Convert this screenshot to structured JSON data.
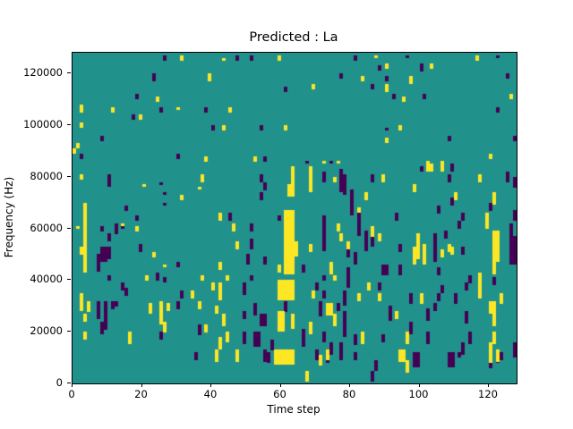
{
  "chart_data": {
    "type": "heatmap",
    "title": "Predicted : La",
    "xlabel": "Time step",
    "ylabel": "Frequency (Hz)",
    "xlim": [
      0,
      128
    ],
    "ylim": [
      0,
      128000
    ],
    "x_ticks": [
      0,
      20,
      40,
      60,
      80,
      100,
      120
    ],
    "y_ticks": [
      0,
      20000,
      40000,
      60000,
      80000,
      100000,
      120000
    ],
    "grid_cols": 128,
    "grid_rows": 128,
    "colormap": "viridis",
    "colors": {
      "mid_background": "#21918c",
      "high": "#fde725",
      "low": "#440154",
      "axis": "#000000"
    },
    "grid": false,
    "legend": null,
    "cells_high": [
      [
        31,
        125,
        2
      ],
      [
        24,
        109,
        2
      ],
      [
        2,
        105,
        3
      ],
      [
        11,
        105,
        2
      ],
      [
        30,
        106,
        1
      ],
      [
        19,
        102,
        2
      ],
      [
        2,
        99,
        2
      ],
      [
        1,
        91,
        2
      ],
      [
        0,
        89,
        2
      ],
      [
        43,
        125,
        1
      ],
      [
        59,
        125,
        2
      ],
      [
        39,
        117,
        3
      ],
      [
        45,
        105,
        2
      ],
      [
        43,
        98,
        2
      ],
      [
        61,
        98,
        2
      ],
      [
        38,
        86,
        2
      ],
      [
        52,
        86,
        2
      ],
      [
        87,
        126,
        1
      ],
      [
        90,
        122,
        2
      ],
      [
        83,
        117,
        2
      ],
      [
        69,
        114,
        2
      ],
      [
        90,
        113,
        3
      ],
      [
        95,
        109,
        2
      ],
      [
        94,
        98,
        2
      ],
      [
        90,
        93,
        2
      ],
      [
        72,
        85,
        1
      ],
      [
        76,
        85,
        1
      ],
      [
        116,
        125,
        2
      ],
      [
        103,
        122,
        2
      ],
      [
        97,
        116,
        3
      ],
      [
        126,
        110,
        2
      ],
      [
        120,
        87,
        2
      ],
      [
        102,
        85,
        1
      ],
      [
        106,
        85,
        1
      ],
      [
        2,
        79,
        2
      ],
      [
        20,
        76,
        1
      ],
      [
        31,
        71,
        2
      ],
      [
        3,
        43,
        27
      ],
      [
        2,
        50,
        3
      ],
      [
        14,
        61,
        1
      ],
      [
        1,
        60,
        1
      ],
      [
        18,
        59,
        2
      ],
      [
        23,
        49,
        2
      ],
      [
        26,
        45,
        1
      ],
      [
        37,
        78,
        3
      ],
      [
        36,
        75,
        1
      ],
      [
        42,
        63,
        3
      ],
      [
        46,
        59,
        3
      ],
      [
        47,
        52,
        3
      ],
      [
        42,
        44,
        3
      ],
      [
        61,
        56,
        11,
        3
      ],
      [
        62,
        72,
        5,
        2
      ],
      [
        63,
        77,
        7
      ],
      [
        64,
        49,
        6
      ],
      [
        61,
        42,
        14,
        3
      ],
      [
        59,
        43,
        3
      ],
      [
        68,
        74,
        10
      ],
      [
        75,
        78,
        2
      ],
      [
        84,
        71,
        3
      ],
      [
        89,
        78,
        3
      ],
      [
        82,
        66,
        2
      ],
      [
        76,
        59,
        3
      ],
      [
        86,
        57,
        4
      ],
      [
        88,
        55,
        3
      ],
      [
        77,
        55,
        3
      ],
      [
        79,
        52,
        3
      ],
      [
        68,
        51,
        3
      ],
      [
        74,
        42,
        5
      ],
      [
        102,
        82,
        3,
        2
      ],
      [
        106,
        82,
        3
      ],
      [
        117,
        78,
        3
      ],
      [
        98,
        74,
        3
      ],
      [
        110,
        71,
        3
      ],
      [
        121,
        69,
        5
      ],
      [
        119,
        63,
        3
      ],
      [
        119,
        60,
        3
      ],
      [
        99,
        48,
        10
      ],
      [
        98,
        46,
        7
      ],
      [
        101,
        46,
        8
      ],
      [
        106,
        49,
        3
      ],
      [
        108,
        51,
        3
      ],
      [
        109,
        50,
        3
      ],
      [
        121,
        47,
        12,
        2
      ],
      [
        121,
        42,
        6
      ],
      [
        21,
        40,
        2
      ],
      [
        2,
        28,
        7
      ],
      [
        4,
        28,
        4
      ],
      [
        22,
        27,
        4
      ],
      [
        25,
        23,
        9
      ],
      [
        27,
        28,
        3
      ],
      [
        3,
        24,
        3
      ],
      [
        3,
        17,
        3
      ],
      [
        16,
        15,
        5
      ],
      [
        26,
        20,
        4
      ],
      [
        37,
        40,
        2
      ],
      [
        44,
        40,
        2
      ],
      [
        40,
        36,
        3
      ],
      [
        42,
        32,
        7
      ],
      [
        34,
        33,
        3
      ],
      [
        36,
        29,
        3
      ],
      [
        41,
        27,
        3
      ],
      [
        43,
        22,
        5
      ],
      [
        38,
        20,
        3
      ],
      [
        44,
        16,
        4
      ],
      [
        42,
        13,
        5
      ],
      [
        41,
        8,
        5
      ],
      [
        47,
        8,
        5
      ],
      [
        59,
        32,
        8,
        5
      ],
      [
        59,
        20,
        8,
        2
      ],
      [
        63,
        21,
        6
      ],
      [
        58,
        7,
        6,
        6
      ],
      [
        75,
        40,
        2
      ],
      [
        85,
        36,
        3
      ],
      [
        69,
        33,
        3
      ],
      [
        82,
        32,
        3
      ],
      [
        88,
        32,
        3
      ],
      [
        73,
        26,
        5,
        2
      ],
      [
        75,
        22,
        5
      ],
      [
        93,
        25,
        3
      ],
      [
        68,
        19,
        5
      ],
      [
        83,
        15,
        5
      ],
      [
        73,
        9,
        4
      ],
      [
        71,
        7,
        4
      ],
      [
        94,
        8,
        5,
        2
      ],
      [
        67,
        1,
        4
      ],
      [
        117,
        33,
        10
      ],
      [
        100,
        31,
        4
      ],
      [
        123,
        31,
        4
      ],
      [
        120,
        27,
        5,
        2
      ],
      [
        121,
        22,
        8
      ],
      [
        96,
        15,
        5
      ],
      [
        121,
        15,
        5
      ],
      [
        120,
        8,
        8
      ],
      [
        122,
        8,
        5
      ],
      [
        96,
        4,
        5
      ]
    ],
    "cells_low": [
      [
        26,
        125,
        2
      ],
      [
        23,
        117,
        3
      ],
      [
        18,
        110,
        2
      ],
      [
        25,
        105,
        2
      ],
      [
        17,
        102,
        2
      ],
      [
        8,
        94,
        2
      ],
      [
        2,
        87,
        2
      ],
      [
        30,
        87,
        2
      ],
      [
        47,
        125,
        2
      ],
      [
        51,
        125,
        2
      ],
      [
        61,
        113,
        2
      ],
      [
        38,
        105,
        2
      ],
      [
        40,
        98,
        2
      ],
      [
        54,
        98,
        2
      ],
      [
        55,
        86,
        2
      ],
      [
        81,
        125,
        2
      ],
      [
        88,
        121,
        2
      ],
      [
        77,
        118,
        2
      ],
      [
        90,
        117,
        2
      ],
      [
        86,
        114,
        2
      ],
      [
        92,
        110,
        2
      ],
      [
        90,
        98,
        1
      ],
      [
        67,
        85,
        1
      ],
      [
        74,
        85,
        1
      ],
      [
        96,
        126,
        1
      ],
      [
        122,
        126,
        1
      ],
      [
        100,
        121,
        3
      ],
      [
        125,
        118,
        2
      ],
      [
        101,
        110,
        2
      ],
      [
        122,
        105,
        2
      ],
      [
        108,
        94,
        2
      ],
      [
        127,
        94,
        2
      ],
      [
        10,
        76,
        5
      ],
      [
        25,
        77,
        1
      ],
      [
        26,
        73,
        1
      ],
      [
        15,
        67,
        2
      ],
      [
        26,
        69,
        1
      ],
      [
        18,
        63,
        2
      ],
      [
        8,
        59,
        2
      ],
      [
        12,
        58,
        4
      ],
      [
        14,
        60,
        1
      ],
      [
        10,
        55,
        3
      ],
      [
        8,
        47,
        6,
        2
      ],
      [
        10,
        48,
        5
      ],
      [
        7,
        43,
        7
      ],
      [
        19,
        51,
        3
      ],
      [
        30,
        45,
        2
      ],
      [
        54,
        78,
        3
      ],
      [
        55,
        75,
        3
      ],
      [
        54,
        71,
        3
      ],
      [
        45,
        63,
        3
      ],
      [
        51,
        59,
        3
      ],
      [
        59,
        63,
        2
      ],
      [
        51,
        52,
        4
      ],
      [
        50,
        46,
        4
      ],
      [
        55,
        46,
        3
      ],
      [
        72,
        78,
        4
      ],
      [
        77,
        74,
        9
      ],
      [
        78,
        73,
        8
      ],
      [
        80,
        65,
        10
      ],
      [
        86,
        78,
        3
      ],
      [
        82,
        57,
        9
      ],
      [
        72,
        51,
        14
      ],
      [
        86,
        53,
        4
      ],
      [
        84,
        51,
        8
      ],
      [
        79,
        49,
        3
      ],
      [
        81,
        46,
        5
      ],
      [
        94,
        51,
        3
      ],
      [
        93,
        63,
        3
      ],
      [
        66,
        43,
        3
      ],
      [
        79,
        42,
        3
      ],
      [
        89,
        42,
        4,
        2
      ],
      [
        94,
        42,
        4
      ],
      [
        100,
        82,
        2
      ],
      [
        109,
        82,
        3
      ],
      [
        108,
        78,
        3
      ],
      [
        125,
        78,
        4
      ],
      [
        127,
        76,
        4
      ],
      [
        109,
        69,
        3
      ],
      [
        105,
        66,
        3
      ],
      [
        120,
        67,
        3
      ],
      [
        127,
        63,
        4
      ],
      [
        112,
        63,
        3
      ],
      [
        111,
        60,
        3
      ],
      [
        126,
        57,
        5
      ],
      [
        104,
        47,
        11
      ],
      [
        107,
        56,
        3
      ],
      [
        112,
        50,
        3
      ],
      [
        126,
        46,
        11,
        2
      ],
      [
        105,
        42,
        3
      ],
      [
        10,
        40,
        2
      ],
      [
        24,
        40,
        3
      ],
      [
        26,
        39,
        2
      ],
      [
        14,
        36,
        3
      ],
      [
        15,
        34,
        3
      ],
      [
        31,
        33,
        3
      ],
      [
        7,
        25,
        7
      ],
      [
        9,
        21,
        11
      ],
      [
        11,
        29,
        3
      ],
      [
        12,
        30,
        2
      ],
      [
        30,
        29,
        3
      ],
      [
        8,
        19,
        5
      ],
      [
        25,
        17,
        3
      ],
      [
        51,
        40,
        2
      ],
      [
        49,
        34,
        5
      ],
      [
        61,
        28,
        4
      ],
      [
        49,
        25,
        3
      ],
      [
        52,
        26,
        5
      ],
      [
        54,
        22,
        5,
        2
      ],
      [
        36,
        19,
        4
      ],
      [
        49,
        15,
        5
      ],
      [
        52,
        14,
        6,
        2
      ],
      [
        57,
        13,
        4
      ],
      [
        55,
        8,
        5
      ],
      [
        35,
        9,
        3
      ],
      [
        56,
        8,
        4
      ],
      [
        72,
        40,
        2
      ],
      [
        79,
        37,
        5
      ],
      [
        70,
        36,
        3
      ],
      [
        88,
        36,
        3
      ],
      [
        72,
        33,
        3
      ],
      [
        78,
        30,
        6
      ],
      [
        71,
        26,
        6
      ],
      [
        76,
        28,
        3
      ],
      [
        78,
        18,
        10
      ],
      [
        91,
        24,
        6
      ],
      [
        66,
        14,
        7
      ],
      [
        72,
        16,
        4
      ],
      [
        81,
        15,
        4
      ],
      [
        89,
        16,
        3
      ],
      [
        74,
        11,
        5
      ],
      [
        77,
        10,
        6
      ],
      [
        73,
        8,
        4
      ],
      [
        81,
        9,
        3
      ],
      [
        87,
        5,
        4
      ],
      [
        86,
        1,
        4
      ],
      [
        70,
        9,
        4
      ],
      [
        77,
        9,
        4
      ],
      [
        114,
        39,
        3
      ],
      [
        121,
        38,
        3
      ],
      [
        106,
        35,
        3
      ],
      [
        113,
        36,
        3
      ],
      [
        97,
        31,
        4
      ],
      [
        105,
        32,
        3
      ],
      [
        110,
        31,
        4
      ],
      [
        104,
        28,
        3
      ],
      [
        102,
        24,
        5
      ],
      [
        113,
        23,
        5
      ],
      [
        97,
        19,
        5
      ],
      [
        102,
        15,
        5
      ],
      [
        114,
        15,
        5
      ],
      [
        112,
        11,
        5
      ],
      [
        127,
        10,
        6
      ],
      [
        98,
        6,
        6,
        2
      ],
      [
        108,
        6,
        6,
        2
      ],
      [
        120,
        6,
        4
      ],
      [
        122,
        8,
        4
      ],
      [
        123,
        9,
        3
      ],
      [
        111,
        10,
        2
      ]
    ]
  }
}
